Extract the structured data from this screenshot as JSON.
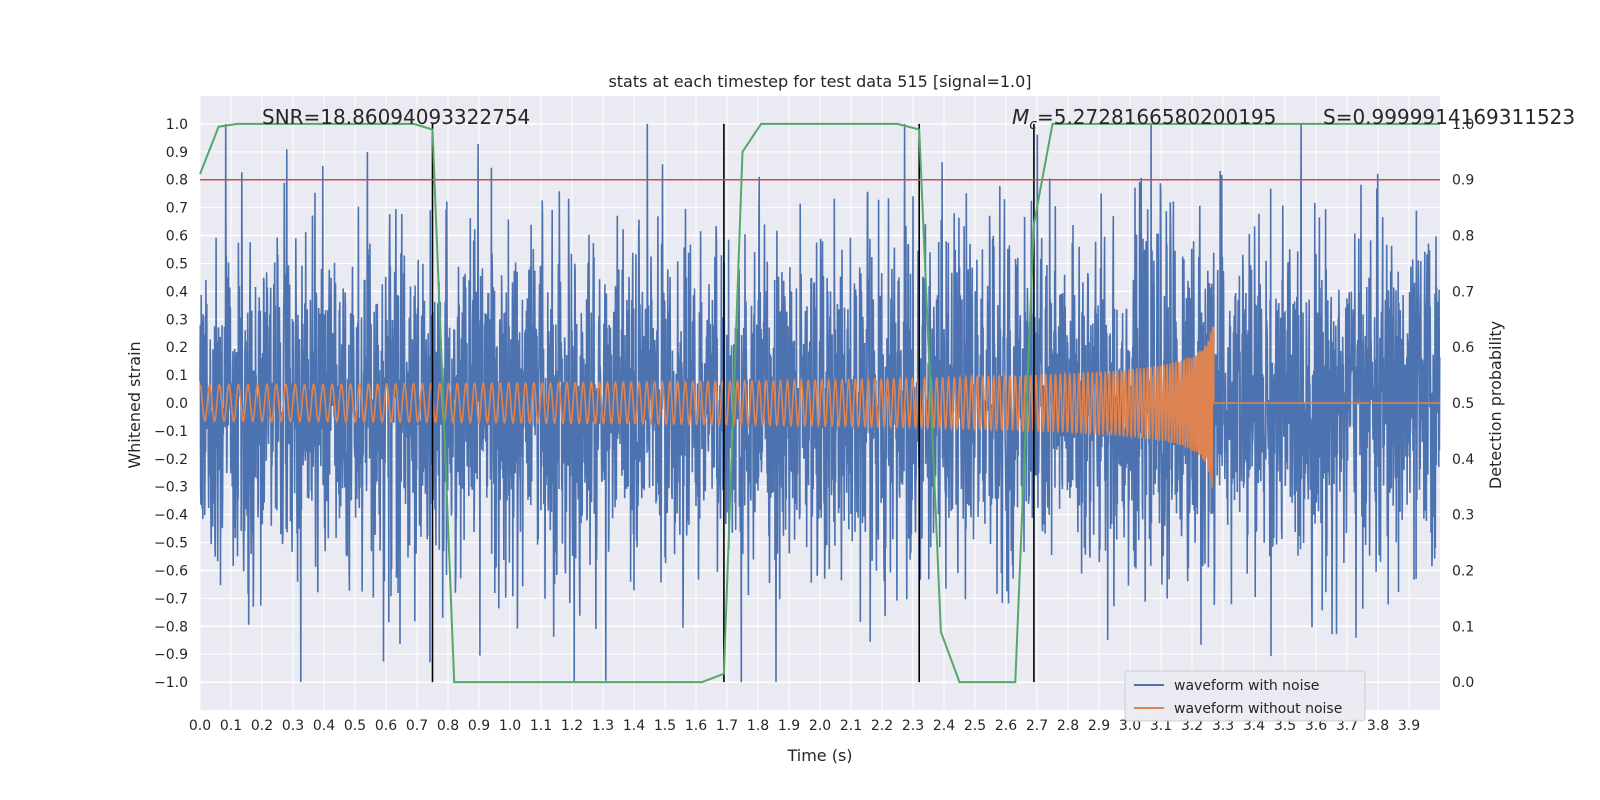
{
  "chart_data": {
    "type": "line",
    "title": "stats at each timestep for test data 515 [signal=1.0]",
    "xlabel": "Time (s)",
    "ylabel": "Whitened strain",
    "y2label": "Detection probability",
    "xlim": [
      0,
      4.0
    ],
    "ylim": [
      -1.1,
      1.1
    ],
    "y2lim": [
      -0.05,
      1.05
    ],
    "grid": true,
    "x_ticks": [
      "0.0",
      "0.1",
      "0.2",
      "0.3",
      "0.4",
      "0.5",
      "0.6",
      "0.7",
      "0.8",
      "0.9",
      "1.0",
      "1.1",
      "1.2",
      "1.3",
      "1.4",
      "1.5",
      "1.6",
      "1.7",
      "1.8",
      "1.9",
      "2.0",
      "2.1",
      "2.2",
      "2.3",
      "2.4",
      "2.5",
      "2.6",
      "2.7",
      "2.8",
      "2.9",
      "3.0",
      "3.1",
      "3.2",
      "3.3",
      "3.4",
      "3.5",
      "3.6",
      "3.7",
      "3.8",
      "3.9"
    ],
    "y_ticks": [
      "1.0",
      "0.9",
      "0.8",
      "0.7",
      "0.6",
      "0.5",
      "0.4",
      "0.3",
      "0.2",
      "0.1",
      "0.0",
      "−0.1",
      "−0.2",
      "−0.3",
      "−0.4",
      "−0.5",
      "−0.6",
      "−0.7",
      "−0.8",
      "−0.9",
      "−1.0"
    ],
    "y2_ticks": [
      "1.0",
      "0.9",
      "0.8",
      "0.7",
      "0.6",
      "0.5",
      "0.4",
      "0.3",
      "0.2",
      "0.1",
      "0.0"
    ],
    "annotations": {
      "snr": "SNR=18.86094093322754",
      "mc_symbol": "M",
      "mc_sub": "c",
      "mc_value": "=5.2728166580200195",
      "s": "S=0.9999914169311523"
    },
    "threshold": {
      "y2": 0.9,
      "color": "#c44e52"
    },
    "vertical_lines": [
      0.75,
      1.69,
      2.32,
      2.69
    ],
    "legend": {
      "placement": "lower-right",
      "entries": [
        {
          "label": "waveform with noise",
          "color": "#4c72b0"
        },
        {
          "label": "waveform without noise",
          "color": "#dd8452"
        }
      ]
    },
    "series": [
      {
        "name": "waveform with noise",
        "color": "#4c72b0",
        "kind": "noise",
        "amplitude_typical": 0.3,
        "x_range": [
          0,
          4.0
        ]
      },
      {
        "name": "waveform without noise",
        "color": "#dd8452",
        "kind": "chirp",
        "x_range": [
          0,
          3.27
        ],
        "merger_time": 3.27,
        "peak_amplitude": 0.45
      },
      {
        "color": "#55a868",
        "axis": "y2",
        "x": [
          0.0,
          0.06,
          0.12,
          0.35,
          0.69,
          0.75,
          0.82,
          1.05,
          1.62,
          1.69,
          1.75,
          1.81,
          2.25,
          2.32,
          2.39,
          2.45,
          2.63,
          2.69,
          2.75,
          3.0,
          4.0
        ],
        "values": [
          0.91,
          0.995,
          1.0,
          1.0,
          1.0,
          0.99,
          0.0,
          0.0,
          0.0,
          0.015,
          0.95,
          1.0,
          1.0,
          0.99,
          0.09,
          0.0,
          0.0,
          0.82,
          1.0,
          1.0,
          1.0
        ]
      }
    ]
  }
}
